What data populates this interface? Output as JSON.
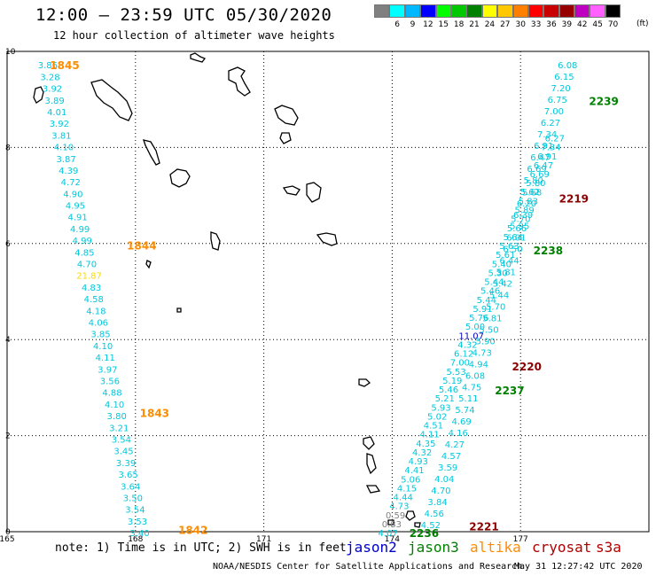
{
  "header": {
    "title": "12:00 – 23:59 UTC 05/30/2020",
    "subtitle": "12 hour collection of altimeter wave heights"
  },
  "color_scale": {
    "unit": "(ft)",
    "bins": [
      {
        "label": "3",
        "color": "#808080"
      },
      {
        "label": "6",
        "color": "#00ffff"
      },
      {
        "label": "9",
        "color": "#00b8ff"
      },
      {
        "label": "12",
        "color": "#0000ff"
      },
      {
        "label": "15",
        "color": "#00ff00"
      },
      {
        "label": "18",
        "color": "#00c800"
      },
      {
        "label": "21",
        "color": "#008000"
      },
      {
        "label": "24",
        "color": "#ffff00"
      },
      {
        "label": "27",
        "color": "#ffc800"
      },
      {
        "label": "30",
        "color": "#ff8000"
      },
      {
        "label": "33",
        "color": "#ff0000"
      },
      {
        "label": "36",
        "color": "#c80000"
      },
      {
        "label": "39",
        "color": "#960000"
      },
      {
        "label": "42",
        "color": "#c000c0"
      },
      {
        "label": "45",
        "color": "#ff60ff"
      },
      {
        "label": "70",
        "color": "#000000"
      }
    ]
  },
  "map": {
    "x_ticks": [
      "165",
      "168",
      "171",
      "174",
      "177"
    ],
    "y_ticks": [
      "10",
      "8",
      "6",
      "4",
      "2",
      "0"
    ],
    "x_range": [
      165,
      180
    ],
    "y_range": [
      0,
      10
    ]
  },
  "passes": [
    {
      "time": "1845",
      "color": "#ff8c00",
      "label_pos": [
        166.0,
        9.72
      ]
    },
    {
      "time": "1844",
      "color": "#ff8c00",
      "label_pos": [
        167.8,
        5.97
      ]
    },
    {
      "time": "1843",
      "color": "#ff8c00",
      "label_pos": [
        168.1,
        2.48
      ]
    },
    {
      "time": "1842",
      "color": "#ff8c00",
      "label_pos": [
        169.0,
        0.05
      ]
    },
    {
      "time": "2239",
      "color": "#008000",
      "label_pos": [
        178.6,
        8.98
      ]
    },
    {
      "time": "2238",
      "color": "#008000",
      "label_pos": [
        177.3,
        5.87
      ]
    },
    {
      "time": "2237",
      "color": "#008000",
      "label_pos": [
        176.4,
        2.95
      ]
    },
    {
      "time": "2236",
      "color": "#008000",
      "label_pos": [
        174.4,
        -0.02
      ]
    },
    {
      "time": "2219",
      "color": "#8b0000",
      "label_pos": [
        177.9,
        6.95
      ]
    },
    {
      "time": "2220",
      "color": "#8b0000",
      "label_pos": [
        176.8,
        3.45
      ]
    },
    {
      "time": "2221",
      "color": "#8b0000",
      "label_pos": [
        175.8,
        0.12
      ]
    }
  ],
  "track_west": {
    "heights": [
      "3.86",
      "3.28",
      "3.92",
      "3.89",
      "4.01",
      "3.92",
      "3.81",
      "4.10",
      "3.87",
      "4.39",
      "4.72",
      "4.90",
      "4.95",
      "4.91",
      "4.99",
      "4.99",
      "4.85",
      "4.70",
      "21.87",
      "4.83",
      "4.58",
      "4.18",
      "4.06",
      "3.85",
      "4.10",
      "4.11",
      "3.97",
      "3.56",
      "4.88",
      "4.10",
      "3.80",
      "3.21",
      "3.54",
      "3.45",
      "3.39",
      "3.65",
      "3.64",
      "3.50",
      "3.54",
      "3.53",
      "3.40"
    ]
  },
  "track_east_left": {
    "heights": [
      "6.27",
      "7.34",
      "6.91",
      "6.47",
      "6.69",
      "5.80",
      "5.68",
      "5.83",
      "5.89",
      "5.70",
      "5.66",
      "5.64",
      "5.63",
      "5.61",
      "5.40",
      "5.30",
      "5.44",
      "5.46",
      "5.44",
      "5.91",
      "5.76",
      "5.00",
      "11.07",
      "4.32",
      "6.12",
      "7.00",
      "5.53",
      "5.19",
      "5.46",
      "5.21",
      "5.93",
      "5.02",
      "4.51",
      "4.11",
      "4.35",
      "4.32",
      "4.93",
      "4.41",
      "5.06",
      "4.15",
      "4.44",
      "4.73",
      "0.59",
      "0.83",
      "4.07"
    ]
  },
  "track_east_right": {
    "heights": [
      "6.08",
      "6.15",
      "7.20",
      "6.75",
      "7.00",
      "6.27",
      "7.34",
      "6.91",
      "6.47",
      "6.69",
      "5.80",
      "5.62",
      "6.20",
      "6.39",
      "5.95",
      "6.01",
      "6.50",
      "6.44",
      "5.81",
      "5.42",
      "5.44",
      "5.70",
      "5.81",
      "5.50",
      "5.90",
      "4.73",
      "4.94",
      "6.08",
      "4.75",
      "5.11",
      "5.74",
      "4.69",
      "4.16",
      "4.27",
      "4.57",
      "3.59",
      "4.04",
      "4.70",
      "3.84",
      "4.56",
      "4.52"
    ]
  },
  "footer": {
    "note": "note:  1) Time is in UTC;  2) SWH is in feet",
    "sat_jason2": "jason2",
    "sat_jason3": "jason3",
    "sat_altika": "altika",
    "sat_cryosat": "cryosat",
    "sat_s3a": "s3a",
    "credit": "NOAA/NESDIS Center for Satellite Applications and Research",
    "timestamp": "May 31 12:27:42 UTC 2020"
  }
}
